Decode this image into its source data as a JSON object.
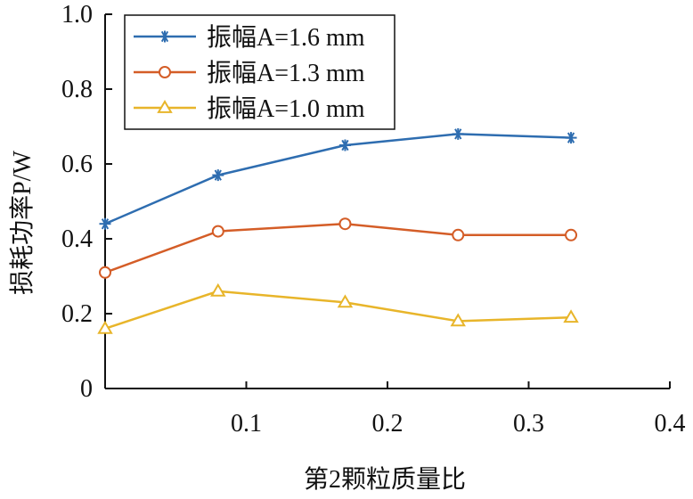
{
  "chart_data": {
    "type": "line",
    "xlabel": "第2颗粒质量比",
    "ylabel": "损耗功率P/W",
    "xlim": [
      0,
      0.4
    ],
    "ylim": [
      0,
      1.0
    ],
    "xticks": [
      0.1,
      0.2,
      0.3,
      0.4
    ],
    "xtick_labels": [
      "0.1",
      "0.2",
      "0.3",
      "0.4"
    ],
    "yticks": [
      0,
      0.2,
      0.4,
      0.6,
      0.8,
      1.0
    ],
    "ytick_labels": [
      "0",
      "0.2",
      "0.4",
      "0.6",
      "0.8",
      "1.0"
    ],
    "grid": false,
    "legend_position": "top-left",
    "x": [
      0.0,
      0.08,
      0.17,
      0.25,
      0.33
    ],
    "series": [
      {
        "name": "振幅A=1.6 mm",
        "values": [
          0.44,
          0.57,
          0.65,
          0.68,
          0.67
        ],
        "color": "#2e6db0",
        "marker": "asterisk"
      },
      {
        "name": "振幅A=1.3 mm",
        "values": [
          0.31,
          0.42,
          0.44,
          0.41,
          0.41
        ],
        "color": "#d45d27",
        "marker": "circle"
      },
      {
        "name": "振幅A=1.0 mm",
        "values": [
          0.16,
          0.26,
          0.23,
          0.18,
          0.19
        ],
        "color": "#e8b52a",
        "marker": "triangle"
      }
    ]
  }
}
